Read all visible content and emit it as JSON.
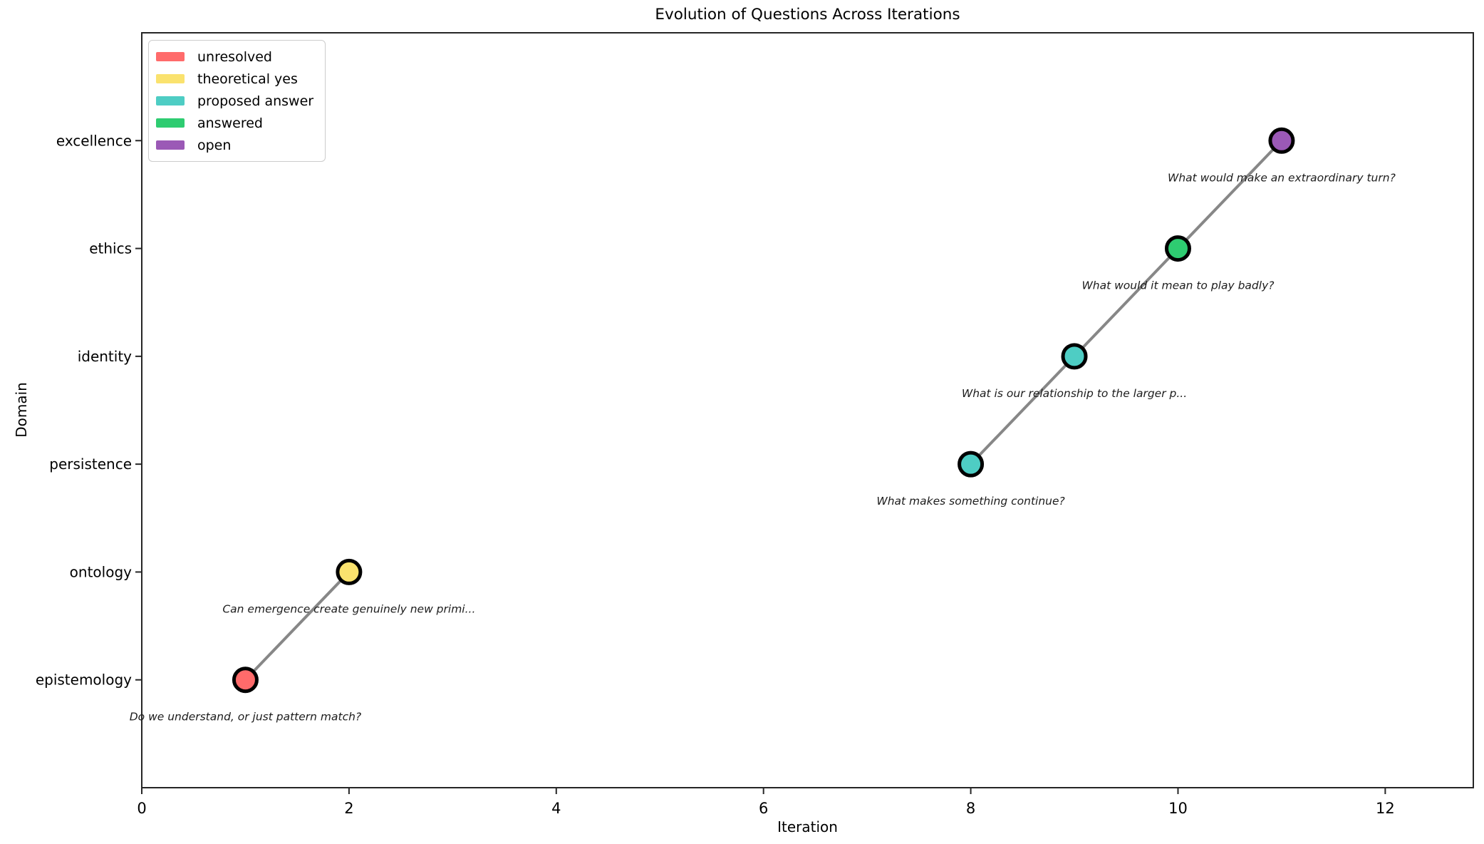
{
  "chart_data": {
    "type": "scatter",
    "title": "Evolution of Questions Across Iterations",
    "xlabel": "Iteration",
    "ylabel": "Domain",
    "xlim": [
      0,
      12.85
    ],
    "x_ticks": [
      0,
      2,
      4,
      6,
      8,
      10,
      12
    ],
    "categories": [
      "epistemology",
      "ontology",
      "persistence",
      "identity",
      "ethics",
      "excellence"
    ],
    "grid": false,
    "legend_position": "upper-left",
    "legend": [
      {
        "label": "unresolved",
        "color": "#FF6B6B"
      },
      {
        "label": "theoretical yes",
        "color": "#FAE26E"
      },
      {
        "label": "proposed answer",
        "color": "#4ECDC4"
      },
      {
        "label": "answered",
        "color": "#2ECC71"
      },
      {
        "label": "open",
        "color": "#9B59B6"
      }
    ],
    "points": [
      {
        "x": 1,
        "domain": "epistemology",
        "status": "unresolved",
        "annotation": "Do we understand, or just pattern match?"
      },
      {
        "x": 2,
        "domain": "ontology",
        "status": "theoretical yes",
        "annotation": "Can emergence create genuinely new primi..."
      },
      {
        "x": 8,
        "domain": "persistence",
        "status": "proposed answer",
        "annotation": "What makes something continue?"
      },
      {
        "x": 9,
        "domain": "identity",
        "status": "proposed answer",
        "annotation": "What is our relationship to the larger p..."
      },
      {
        "x": 10,
        "domain": "ethics",
        "status": "answered",
        "annotation": "What would it mean to play badly?"
      },
      {
        "x": 11,
        "domain": "excellence",
        "status": "open",
        "annotation": "What would make an extraordinary turn?"
      }
    ],
    "segments": [
      [
        0,
        1
      ],
      [
        2,
        3,
        4,
        5
      ]
    ],
    "line_color": "#878787",
    "marker_edge_color": "#000000",
    "spine_color": "#262626",
    "annotation_color": "#1c1c1c"
  }
}
